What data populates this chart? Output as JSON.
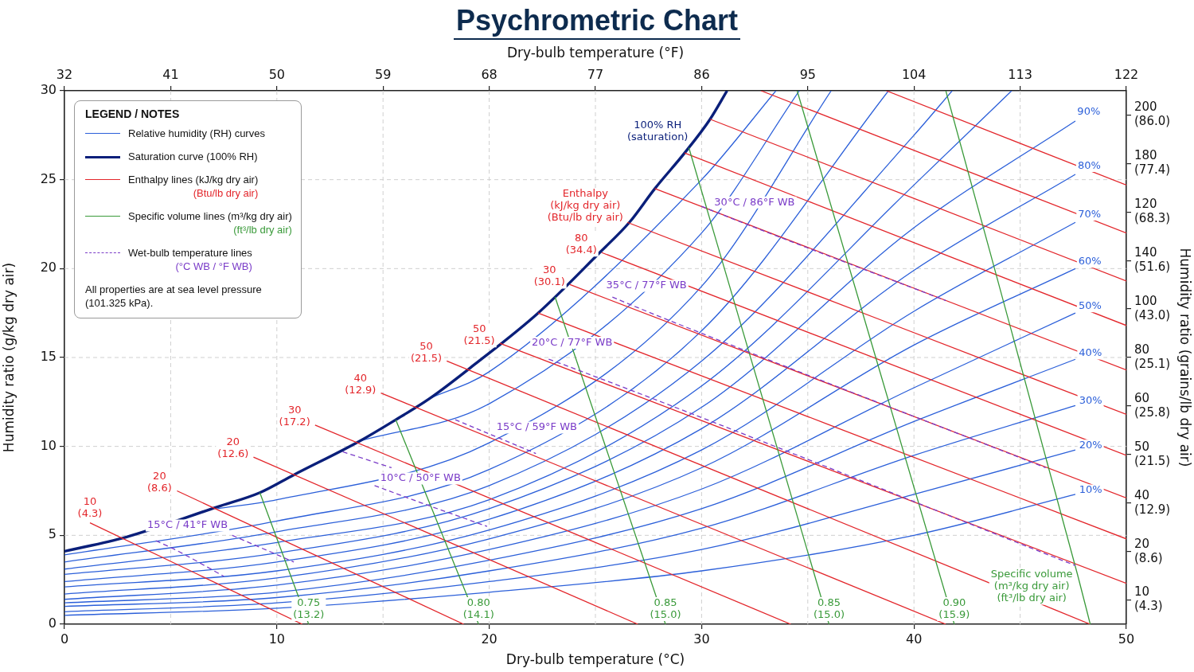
{
  "chart_data": {
    "type": "line",
    "title": "Psychrometric Chart",
    "xlabel": "Dry-bulb temperature (°C)",
    "x2label": "Dry-bulb temperature (°F)",
    "ylabel": "Humidity ratio (g/kg dry air)",
    "y2label": "Humidity ratio (grains/lb dry air)",
    "xlim": [
      0,
      50
    ],
    "xticks": [
      0,
      10,
      20,
      30,
      40,
      50
    ],
    "x2lim": [
      32,
      122
    ],
    "x2ticks": [
      32,
      41,
      50,
      59,
      68,
      77,
      86,
      95,
      104,
      113,
      122
    ],
    "ylim": [
      0,
      30
    ],
    "yticks": [
      0,
      5,
      10,
      15,
      20,
      25,
      30
    ],
    "y2_categories": [
      "200\n(86.0)",
      "180\n(77.4)",
      "120\n(68.3)",
      "140\n(51.6)",
      "100\n(43.0)",
      "80\n(25.1)",
      "60\n(25.8)",
      "50\n(21.5)",
      "40\n(12.9)",
      "20\n(8.6)",
      "10\n(4.3)"
    ],
    "grid": true,
    "legend": "top left",
    "legend_title": "LEGEND / NOTES",
    "series": [
      {
        "name": "Relative humidity (RH) curves",
        "color": "#2b5fd9",
        "x": [
          0,
          10,
          20,
          30,
          40,
          47.6
        ],
        "values": [
          0.5,
          0.9,
          1.8,
          3.0,
          5.0,
          7.3
        ]
      },
      {
        "color": "#2b5fd9",
        "x": [
          0,
          10,
          20,
          30,
          40,
          47.6
        ],
        "values": [
          0.7,
          1.2,
          2.4,
          4.2,
          7.3,
          9.8
        ]
      },
      {
        "color": "#2b5fd9",
        "x": [
          0,
          10,
          20,
          30,
          40,
          47.6
        ],
        "values": [
          1.0,
          1.5,
          3.0,
          5.4,
          9.5,
          12.3
        ]
      },
      {
        "color": "#2b5fd9",
        "x": [
          0,
          10,
          20,
          30,
          40,
          47.6
        ],
        "values": [
          1.2,
          1.8,
          3.6,
          6.5,
          11.4,
          14.9
        ]
      },
      {
        "color": "#2b5fd9",
        "x": [
          0,
          10,
          20,
          30,
          40,
          47.6
        ],
        "values": [
          1.4,
          2.2,
          4.2,
          7.6,
          13.3,
          17.5
        ]
      },
      {
        "color": "#2b5fd9",
        "x": [
          0,
          10,
          20,
          30,
          40,
          47.6
        ],
        "values": [
          1.7,
          2.6,
          4.8,
          8.8,
          15.7,
          20.0
        ]
      },
      {
        "color": "#2b5fd9",
        "x": [
          0,
          10,
          20,
          30,
          40,
          47.6
        ],
        "values": [
          2.1,
          3.0,
          5.3,
          9.8,
          17.6,
          22.6
        ]
      },
      {
        "color": "#2b5fd9",
        "x": [
          0,
          10,
          20,
          30,
          40,
          47.6
        ],
        "values": [
          2.4,
          3.5,
          5.9,
          11.0,
          19.9,
          25.3
        ]
      },
      {
        "color": "#2b5fd9",
        "x": [
          0,
          10,
          20,
          30,
          40,
          47.6
        ],
        "values": [
          2.8,
          4.0,
          6.5,
          12.2,
          22.3,
          28.3
        ]
      },
      {
        "color": "#2b5fd9",
        "x": [
          0,
          10,
          20,
          30,
          40,
          44.6
        ],
        "values": [
          3.1,
          4.6,
          7.0,
          13.4,
          24.7,
          30
        ]
      },
      {
        "color": "#2b5fd9",
        "x": [
          0,
          10,
          20,
          30,
          40,
          41.8
        ],
        "values": [
          3.5,
          5.2,
          7.8,
          14.8,
          27.5,
          30
        ]
      },
      {
        "color": "#2b5fd9",
        "x": [
          0,
          10,
          20,
          30,
          38.8
        ],
        "values": [
          3.9,
          5.8,
          8.7,
          16.5,
          30
        ]
      },
      {
        "color": "#2b5fd9",
        "x": [
          7.2,
          10,
          20,
          30,
          36.1
        ],
        "values": [
          6.5,
          7.0,
          10.2,
          19.0,
          30
        ]
      },
      {
        "color": "#2b5fd9",
        "x": [
          13.9,
          20,
          30,
          34.6
        ],
        "values": [
          10.3,
          12.4,
          22.0,
          30
        ]
      },
      {
        "color": "#2b5fd9",
        "x": [
          17.2,
          20,
          30,
          33.5
        ],
        "values": [
          12.7,
          14.2,
          25.0,
          30
        ]
      },
      {
        "name": "Saturation curve (100% RH)",
        "color": "#0a1f7a",
        "x": [
          0,
          2.9,
          7.2,
          9.2,
          10.8,
          13.9,
          15.6,
          17.2,
          19.3,
          22.3,
          25.2,
          26.6,
          27.8,
          29.2,
          30.4,
          31.2
        ],
        "values": [
          4.1,
          4.9,
          6.6,
          7.4,
          8.4,
          10.3,
          11.5,
          12.7,
          14.6,
          17.5,
          20.9,
          22.6,
          24.5,
          26.5,
          28.4,
          30.0
        ]
      },
      {
        "name": "Enthalpy lines (kJ/kg dry air)\n(Btu/lb dry air)",
        "color": "#e3262b",
        "x": [
          38.7,
          50
        ],
        "values": [
          30,
          24.7
        ]
      },
      {
        "color": "#e3262b",
        "x": [
          32.8,
          50
        ],
        "values": [
          30,
          22.0
        ]
      },
      {
        "color": "#e3262b",
        "x": [
          30.4,
          50
        ],
        "values": [
          28.4,
          19.3
        ]
      },
      {
        "color": "#e3262b",
        "x": [
          29.2,
          50
        ],
        "values": [
          26.5,
          16.8
        ]
      },
      {
        "color": "#e3262b",
        "x": [
          27.8,
          50
        ],
        "values": [
          24.5,
          14.3
        ]
      },
      {
        "color": "#e3262b",
        "x": [
          26.5,
          50
        ],
        "values": [
          22.6,
          11.8
        ]
      },
      {
        "color": "#e3262b",
        "x": [
          25.3,
          50
        ],
        "values": [
          20.9,
          9.5
        ]
      },
      {
        "color": "#e3262b",
        "x": [
          23.8,
          50
        ],
        "values": [
          19.1,
          7.1
        ]
      },
      {
        "color": "#e3262b",
        "x": [
          22.3,
          50
        ],
        "values": [
          17.5,
          4.8
        ]
      },
      {
        "color": "#e3262b",
        "x": [
          20.5,
          50
        ],
        "values": [
          15.8,
          2.3
        ]
      },
      {
        "color": "#e3262b",
        "x": [
          18.0,
          48.3
        ],
        "values": [
          14.8,
          0
        ]
      },
      {
        "color": "#e3262b",
        "x": [
          14.9,
          41.5
        ],
        "values": [
          13.0,
          0
        ]
      },
      {
        "color": "#e3262b",
        "x": [
          11.8,
          34.2
        ],
        "values": [
          11.2,
          0
        ]
      },
      {
        "color": "#e3262b",
        "x": [
          8.9,
          27.0
        ],
        "values": [
          9.4,
          0
        ]
      },
      {
        "color": "#e3262b",
        "x": [
          5.3,
          18.8
        ],
        "values": [
          7.5,
          0
        ]
      },
      {
        "color": "#e3262b",
        "x": [
          1.2,
          11.2
        ],
        "values": [
          5.7,
          0
        ]
      },
      {
        "name": "Specific volume lines (m³/kg dry air)\n(ft³/lb dry air)",
        "color": "#3a9a3a",
        "x": [
          9.2,
          11.5
        ],
        "values": [
          7.4,
          0
        ]
      },
      {
        "color": "#3a9a3a",
        "x": [
          15.6,
          19.5
        ],
        "values": [
          11.5,
          0
        ]
      },
      {
        "color": "#3a9a3a",
        "x": [
          23.1,
          28.3
        ],
        "values": [
          18.4,
          0
        ]
      },
      {
        "color": "#3a9a3a",
        "x": [
          29.4,
          36.0
        ],
        "values": [
          26.8,
          0
        ]
      },
      {
        "color": "#3a9a3a",
        "x": [
          34.5,
          41.9
        ],
        "values": [
          30,
          0
        ]
      },
      {
        "color": "#3a9a3a",
        "x": [
          41.5,
          47.7,
          48.3
        ],
        "values": [
          30,
          2.8,
          0
        ]
      },
      {
        "name": "Wet-bulb temperature lines\n(°C WB / °F WB)",
        "line_style": "dashed",
        "color": "#7a3cc8",
        "x": [
          4.3,
          5.2,
          7.5
        ],
        "values": [
          4.7,
          4.2,
          2.7
        ]
      },
      {
        "line_style": "dashed",
        "color": "#7a3cc8",
        "x": [
          7.9,
          10.8
        ],
        "values": [
          5.0,
          3.5
        ]
      },
      {
        "line_style": "dashed",
        "color": "#7a3cc8",
        "x": [
          13.1,
          15.4
        ],
        "values": [
          9.7,
          8.8
        ]
      },
      {
        "line_style": "dashed",
        "color": "#7a3cc8",
        "x": [
          14.6,
          16.4,
          19.9
        ],
        "values": [
          7.8,
          7.0,
          5.5
        ]
      },
      {
        "line_style": "dashed",
        "color": "#7a3cc8",
        "x": [
          18.4,
          21.8,
          22.2
        ],
        "values": [
          11.5,
          9.8,
          9.6
        ]
      },
      {
        "line_style": "dashed",
        "color": "#7a3cc8",
        "x": [
          22.8,
          23.5,
          47.6
        ],
        "values": [
          14.9,
          14.6,
          3.3
        ]
      },
      {
        "line_style": "dashed",
        "color": "#7a3cc8",
        "x": [
          25.8,
          27.0,
          46.2
        ],
        "values": [
          18.4,
          17.8,
          8.8
        ]
      },
      {
        "line_style": "dashed",
        "color": "#7a3cc8",
        "x": [
          30.0,
          32.1,
          41.5
        ],
        "values": [
          23.5,
          22.5,
          18.2
        ]
      }
    ],
    "annotations": [
      "All properties are at sea level pressure (101.325 kPa).",
      {
        "text": "10%",
        "x": 47.6,
        "y": 7.3
      },
      {
        "text": "20%",
        "x": 47.6,
        "y": 9.8
      },
      {
        "text": "30%",
        "x": 47.6,
        "y": 12.3
      },
      {
        "text": "40%",
        "x": 47.6,
        "y": 14.9
      },
      {
        "text": "50%",
        "x": 47.6,
        "y": 17.5
      },
      {
        "text": "60%",
        "x": 47.6,
        "y": 20.0
      },
      {
        "text": "70%",
        "x": 47.6,
        "y": 22.6
      },
      {
        "text": "80%",
        "x": 47.6,
        "y": 25.3
      },
      {
        "text": "90%",
        "x": 47.6,
        "y": 28.3
      },
      {
        "text": "100% RH\n(saturation)",
        "x": 29.2,
        "y": 26.5
      },
      {
        "text": "Enthalpy\n(kJ/kg dry air)\n(Btu/lb dry air)",
        "x": 26.5,
        "y": 22.6
      },
      {
        "text": "80\n(34.4)",
        "x": 25.3,
        "y": 20.9
      },
      {
        "text": "30\n(30.1)",
        "x": 23.8,
        "y": 19.1
      },
      {
        "text": "50\n(21.5)",
        "x": 20.5,
        "y": 15.8
      },
      {
        "text": "50\n(21.5)",
        "x": 18.0,
        "y": 14.8
      },
      {
        "text": "40\n(12.9)",
        "x": 14.9,
        "y": 13.0
      },
      {
        "text": "30\n(17.2)",
        "x": 11.8,
        "y": 11.2
      },
      {
        "text": "20\n(12.6)",
        "x": 8.9,
        "y": 9.4
      },
      {
        "text": "20\n(8.6)",
        "x": 5.3,
        "y": 7.5
      },
      {
        "text": "10\n(4.3)",
        "x": 1.2,
        "y": 5.7
      },
      {
        "text": "0.75\n(13.2)",
        "x": 11.5,
        "y": 0
      },
      {
        "text": "0.80\n(14.1)",
        "x": 19.5,
        "y": 0
      },
      {
        "text": "0.85\n(15.0)",
        "x": 28.3,
        "y": 0
      },
      {
        "text": "0.85\n(15.0)",
        "x": 36.0,
        "y": 0
      },
      {
        "text": "0.90\n(15.9)",
        "x": 41.9,
        "y": 0
      },
      {
        "text": "Specific volume\n(m³/kg dry air)\n(ft³/lb dry air)",
        "x": 47.7,
        "y": 2.8
      },
      {
        "text": "15°C / 41°F WB",
        "x": 5.2,
        "y": 4.2
      },
      {
        "text": "10°C / 50°F WB",
        "x": 16.4,
        "y": 7.0
      },
      {
        "text": "15°C / 59°F WB",
        "x": 21.8,
        "y": 9.8
      },
      {
        "text": "20°C / 77°F WB",
        "x": 23.5,
        "y": 14.6
      },
      {
        "text": "35°C / 77°F WB",
        "x": 27.0,
        "y": 17.8
      },
      {
        "text": "30°C / 86°F WB",
        "x": 32.1,
        "y": 22.5
      }
    ]
  }
}
